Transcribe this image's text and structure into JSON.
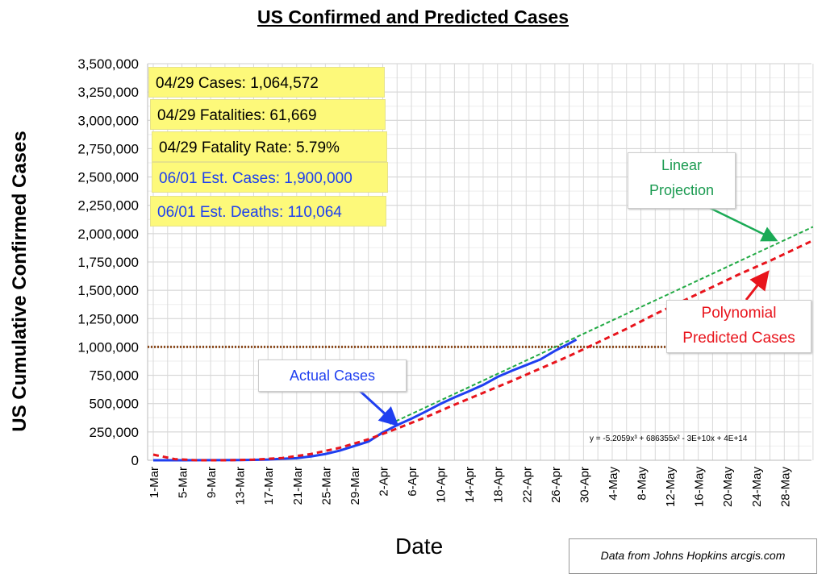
{
  "chart_data": {
    "type": "line",
    "title": "US Confirmed and Predicted Cases",
    "xlabel": "Date",
    "ylabel": "US Cumulative Confirmed Cases",
    "ylim": [
      0,
      3500000
    ],
    "xlim_days_from_1_mar": [
      0,
      92
    ],
    "grid": true,
    "y_ticks": [
      "0",
      "250,000",
      "500,000",
      "750,000",
      "1,000,000",
      "1,250,000",
      "1,500,000",
      "1,750,000",
      "2,000,000",
      "2,250,000",
      "2,500,000",
      "2,750,000",
      "3,000,000",
      "3,250,000",
      "3,500,000"
    ],
    "x_ticks": [
      "1-Mar",
      "5-Mar",
      "9-Mar",
      "13-Mar",
      "17-Mar",
      "21-Mar",
      "25-Mar",
      "29-Mar",
      "2-Apr",
      "6-Apr",
      "10-Apr",
      "14-Apr",
      "18-Apr",
      "22-Apr",
      "26-Apr",
      "30-Apr",
      "4-May",
      "8-May",
      "12-May",
      "16-May",
      "20-May",
      "24-May",
      "28-May"
    ],
    "series": [
      {
        "name": "Actual Cases",
        "color": "#1f3ff0",
        "x": [
          0,
          4,
          8,
          12,
          14,
          16,
          18,
          20,
          22,
          24,
          26,
          28,
          30,
          32,
          34,
          36,
          38,
          40,
          42,
          44,
          46,
          48,
          50,
          52,
          54,
          56,
          58,
          59
        ],
        "values": [
          75,
          220,
          700,
          2200,
          3500,
          6500,
          13000,
          19000,
          34000,
          55000,
          85000,
          125000,
          165000,
          245000,
          310000,
          367000,
          430000,
          496000,
          555000,
          608000,
          665000,
          735000,
          790000,
          840000,
          890000,
          965000,
          1030000,
          1064572
        ]
      },
      {
        "name": "Polynomial Predicted Cases",
        "color": "#e8141c",
        "x": [
          0,
          3,
          6,
          10,
          14,
          18,
          22,
          26,
          30,
          34,
          38,
          42,
          46,
          50,
          54,
          58,
          62,
          66,
          70,
          74,
          78,
          82,
          86,
          92
        ],
        "values": [
          50000,
          10000,
          0,
          0,
          5000,
          20000,
          55000,
          110000,
          185000,
          280000,
          380000,
          490000,
          595000,
          700000,
          810000,
          920000,
          1040000,
          1160000,
          1290000,
          1410000,
          1530000,
          1650000,
          1760000,
          1940000
        ]
      },
      {
        "name": "Linear Projection",
        "color": "#22aa44",
        "x": [
          33,
          92
        ],
        "values": [
          320000,
          2060000
        ]
      },
      {
        "name": "1,000,000 threshold",
        "color": "#8b4a1c",
        "x": [
          0,
          92
        ],
        "values": [
          1000000,
          1000000
        ]
      }
    ],
    "annotations": {
      "actual": "Actual Cases",
      "linear": [
        "Linear",
        "Projection"
      ],
      "poly": [
        "Polynomial",
        "Predicted Cases"
      ],
      "equation": "y = -5.2059x³ + 686355x² - 3E+10x + 4E+14"
    }
  },
  "stats": [
    {
      "text": "04/29 Cases: 1,064,572"
    },
    {
      "text": "04/29 Fatalities: 61,669"
    },
    {
      "text": "04/29 Fatality Rate: 5.79%"
    },
    {
      "text": "06/01 Est. Cases: 1,900,000"
    },
    {
      "text": "06/01 Est. Deaths: 110,064"
    }
  ],
  "source": "Data from Johns Hopkins arcgis.com"
}
